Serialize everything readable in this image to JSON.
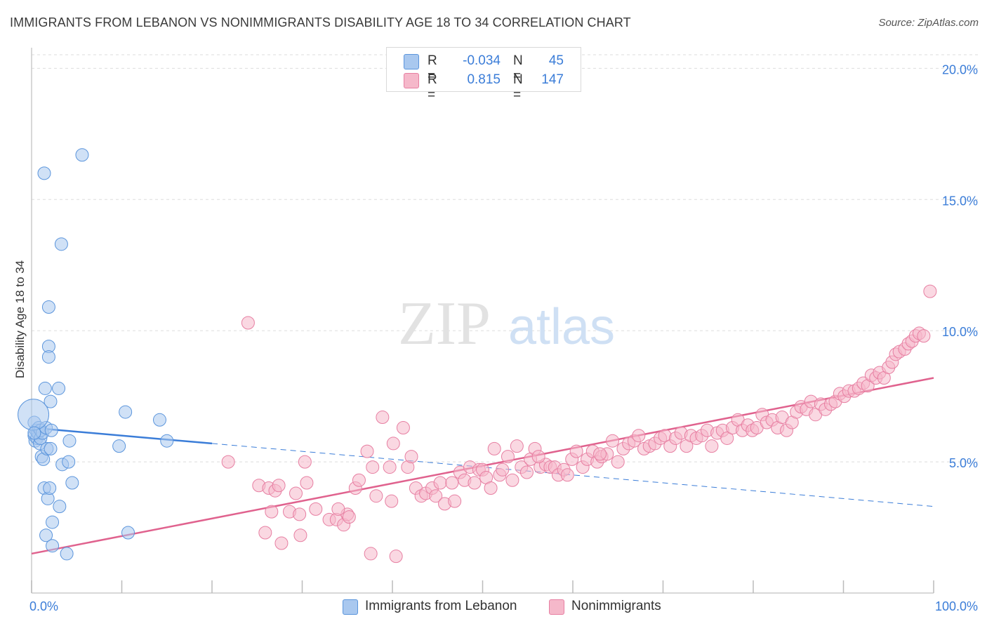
{
  "title": "IMMIGRANTS FROM LEBANON VS NONIMMIGRANTS DISABILITY AGE 18 TO 34 CORRELATION CHART",
  "source": "Source: ZipAtlas.com",
  "watermark": {
    "zip": "ZIP",
    "atlas": "atlas"
  },
  "legend": {
    "rows": [
      {
        "r_label": "R =",
        "r_value": "-0.034",
        "n_label": "N =",
        "n_value": "45"
      },
      {
        "r_label": "R =",
        "r_value": "0.815",
        "n_label": "N =",
        "n_value": "147"
      }
    ]
  },
  "bottom_legend": {
    "series1": "Immigrants from Lebanon",
    "series2": "Nonimmigrants"
  },
  "colors": {
    "blue_fill": "#a9c8ef",
    "blue_stroke": "#5b95dc",
    "blue_line": "#3b7dd8",
    "pink_fill": "#f5b8ca",
    "pink_stroke": "#e77fa2",
    "pink_line": "#e0628e",
    "label": "#3b7dd8",
    "grid": "#dddddd"
  },
  "chart_data": {
    "type": "scatter",
    "title": "IMMIGRANTS FROM LEBANON VS NONIMMIGRANTS DISABILITY AGE 18 TO 34 CORRELATION CHART",
    "xlabel": "",
    "ylabel": "Disability Age 18 to 34",
    "xlim": [
      0,
      100
    ],
    "ylim": [
      0,
      21
    ],
    "x_tick_labels": [
      "0.0%",
      "100.0%"
    ],
    "y_ticks": [
      5,
      10,
      15,
      20
    ],
    "y_tick_labels": [
      "5.0%",
      "10.0%",
      "15.0%",
      "20.0%"
    ],
    "grid": true,
    "series": [
      {
        "name": "Immigrants from Lebanon",
        "color": "#a9c8ef",
        "r": -0.034,
        "n": 45,
        "trend": {
          "x0": 0,
          "y0": 6.3,
          "x1": 100,
          "y1": 3.3,
          "solid_until": 20
        },
        "points": [
          [
            0.3,
            6.5
          ],
          [
            0.3,
            6.0
          ],
          [
            0.4,
            5.8
          ],
          [
            0.5,
            6.2
          ],
          [
            0.6,
            5.9
          ],
          [
            0.7,
            6.1
          ],
          [
            0.8,
            6.3
          ],
          [
            0.9,
            5.7
          ],
          [
            1.0,
            5.9
          ],
          [
            1.0,
            6.2
          ],
          [
            1.1,
            5.2
          ],
          [
            1.2,
            6.1
          ],
          [
            1.3,
            5.1
          ],
          [
            1.4,
            4.0
          ],
          [
            1.4,
            16.0
          ],
          [
            1.5,
            7.8
          ],
          [
            1.6,
            6.3
          ],
          [
            1.6,
            2.2
          ],
          [
            1.7,
            5.5
          ],
          [
            1.8,
            3.6
          ],
          [
            1.9,
            10.9
          ],
          [
            1.9,
            9.4
          ],
          [
            1.9,
            9.0
          ],
          [
            2.0,
            4.0
          ],
          [
            2.1,
            7.3
          ],
          [
            2.1,
            5.5
          ],
          [
            2.2,
            6.2
          ],
          [
            2.3,
            1.8
          ],
          [
            2.3,
            2.7
          ],
          [
            3.0,
            7.8
          ],
          [
            3.1,
            3.3
          ],
          [
            3.3,
            13.3
          ],
          [
            3.4,
            4.9
          ],
          [
            3.9,
            1.5
          ],
          [
            4.1,
            5.0
          ],
          [
            4.2,
            5.8
          ],
          [
            4.5,
            4.2
          ],
          [
            5.6,
            16.7
          ],
          [
            9.7,
            5.6
          ],
          [
            10.4,
            6.9
          ],
          [
            10.7,
            2.3
          ],
          [
            14.2,
            6.6
          ],
          [
            15.0,
            5.8
          ],
          [
            0.2,
            6.8
          ],
          [
            0.3,
            6.1
          ]
        ]
      },
      {
        "name": "Nonimmigrants",
        "color": "#f5b8ca",
        "r": 0.815,
        "n": 147,
        "trend": {
          "x0": 0,
          "y0": 1.5,
          "x1": 100,
          "y1": 8.2
        },
        "points": [
          [
            21.8,
            5.0
          ],
          [
            24.0,
            10.3
          ],
          [
            25.2,
            4.1
          ],
          [
            25.9,
            2.3
          ],
          [
            26.3,
            4.0
          ],
          [
            26.6,
            3.1
          ],
          [
            27.0,
            3.9
          ],
          [
            27.4,
            4.1
          ],
          [
            27.7,
            1.9
          ],
          [
            28.6,
            3.1
          ],
          [
            29.3,
            3.8
          ],
          [
            29.8,
            2.2
          ],
          [
            30.3,
            5.0
          ],
          [
            30.5,
            4.2
          ],
          [
            31.5,
            3.2
          ],
          [
            33.0,
            2.8
          ],
          [
            33.8,
            2.8
          ],
          [
            34.6,
            2.6
          ],
          [
            35.0,
            3.0
          ],
          [
            35.2,
            2.9
          ],
          [
            35.9,
            4.0
          ],
          [
            36.3,
            4.3
          ],
          [
            37.6,
            1.5
          ],
          [
            37.8,
            4.8
          ],
          [
            38.2,
            3.7
          ],
          [
            38.9,
            6.7
          ],
          [
            39.7,
            4.8
          ],
          [
            39.9,
            3.5
          ],
          [
            40.1,
            5.7
          ],
          [
            40.4,
            1.4
          ],
          [
            41.2,
            6.3
          ],
          [
            41.7,
            4.8
          ],
          [
            42.1,
            5.2
          ],
          [
            42.6,
            4.0
          ],
          [
            43.2,
            3.7
          ],
          [
            43.7,
            3.8
          ],
          [
            44.4,
            4.0
          ],
          [
            44.8,
            3.7
          ],
          [
            45.3,
            4.2
          ],
          [
            45.8,
            3.4
          ],
          [
            46.6,
            4.2
          ],
          [
            46.9,
            3.5
          ],
          [
            47.5,
            4.6
          ],
          [
            48.0,
            4.3
          ],
          [
            48.6,
            4.8
          ],
          [
            49.1,
            4.2
          ],
          [
            49.6,
            4.7
          ],
          [
            50.0,
            4.7
          ],
          [
            50.4,
            4.4
          ],
          [
            50.9,
            4.0
          ],
          [
            51.3,
            5.5
          ],
          [
            51.9,
            4.5
          ],
          [
            52.2,
            4.7
          ],
          [
            52.8,
            5.2
          ],
          [
            53.3,
            4.3
          ],
          [
            53.8,
            5.6
          ],
          [
            54.3,
            4.8
          ],
          [
            54.9,
            4.6
          ],
          [
            55.3,
            5.1
          ],
          [
            55.8,
            5.5
          ],
          [
            56.4,
            4.8
          ],
          [
            57.0,
            4.9
          ],
          [
            57.5,
            4.8
          ],
          [
            58.0,
            4.8
          ],
          [
            58.4,
            4.5
          ],
          [
            59.0,
            4.7
          ],
          [
            59.4,
            4.5
          ],
          [
            59.9,
            5.1
          ],
          [
            60.4,
            5.4
          ],
          [
            61.1,
            4.8
          ],
          [
            61.6,
            5.1
          ],
          [
            62.2,
            5.4
          ],
          [
            62.7,
            5.0
          ],
          [
            63.2,
            5.2
          ],
          [
            63.8,
            5.3
          ],
          [
            64.4,
            5.8
          ],
          [
            65.0,
            5.0
          ],
          [
            65.6,
            5.5
          ],
          [
            66.2,
            5.7
          ],
          [
            66.8,
            5.8
          ],
          [
            67.3,
            6.0
          ],
          [
            67.9,
            5.5
          ],
          [
            68.5,
            5.6
          ],
          [
            69.1,
            5.7
          ],
          [
            69.7,
            5.9
          ],
          [
            70.2,
            6.0
          ],
          [
            70.8,
            5.6
          ],
          [
            71.4,
            5.9
          ],
          [
            72.0,
            6.1
          ],
          [
            72.6,
            5.6
          ],
          [
            73.1,
            6.0
          ],
          [
            73.7,
            5.9
          ],
          [
            74.3,
            6.0
          ],
          [
            74.9,
            6.2
          ],
          [
            75.4,
            5.6
          ],
          [
            76.0,
            6.1
          ],
          [
            76.6,
            6.2
          ],
          [
            77.1,
            5.9
          ],
          [
            77.7,
            6.3
          ],
          [
            78.3,
            6.6
          ],
          [
            78.8,
            6.2
          ],
          [
            79.4,
            6.4
          ],
          [
            79.9,
            6.2
          ],
          [
            80.4,
            6.3
          ],
          [
            81.0,
            6.8
          ],
          [
            81.5,
            6.5
          ],
          [
            82.1,
            6.6
          ],
          [
            82.7,
            6.3
          ],
          [
            83.2,
            6.7
          ],
          [
            83.7,
            6.2
          ],
          [
            84.3,
            6.5
          ],
          [
            84.8,
            6.9
          ],
          [
            85.3,
            7.1
          ],
          [
            85.9,
            7.0
          ],
          [
            86.4,
            7.3
          ],
          [
            86.9,
            6.8
          ],
          [
            87.5,
            7.2
          ],
          [
            88.0,
            7.0
          ],
          [
            88.6,
            7.2
          ],
          [
            89.1,
            7.3
          ],
          [
            89.6,
            7.6
          ],
          [
            90.1,
            7.5
          ],
          [
            90.6,
            7.7
          ],
          [
            91.2,
            7.7
          ],
          [
            91.7,
            7.8
          ],
          [
            92.2,
            8.0
          ],
          [
            92.7,
            7.9
          ],
          [
            93.1,
            8.3
          ],
          [
            93.6,
            8.2
          ],
          [
            94.0,
            8.4
          ],
          [
            94.5,
            8.2
          ],
          [
            95.0,
            8.6
          ],
          [
            95.4,
            8.8
          ],
          [
            95.8,
            9.1
          ],
          [
            96.2,
            9.2
          ],
          [
            96.8,
            9.3
          ],
          [
            97.2,
            9.5
          ],
          [
            97.6,
            9.6
          ],
          [
            98.0,
            9.8
          ],
          [
            98.4,
            9.9
          ],
          [
            98.9,
            9.8
          ],
          [
            99.6,
            11.5
          ],
          [
            29.7,
            3.0
          ],
          [
            34.0,
            3.2
          ],
          [
            37.2,
            5.4
          ],
          [
            56.2,
            5.2
          ],
          [
            63.0,
            5.3
          ]
        ]
      }
    ]
  }
}
